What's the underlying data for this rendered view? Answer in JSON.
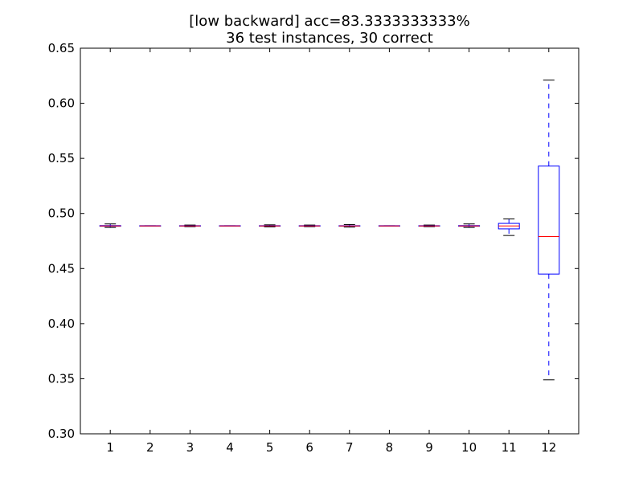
{
  "chart_data": {
    "type": "box",
    "title": "[low backward] acc=83.3333333333%",
    "subtitle": "36 test instances, 30 correct",
    "xlabel": "",
    "ylabel": "",
    "ylim": [
      0.3,
      0.65
    ],
    "yticks": [
      "0.30",
      "0.35",
      "0.40",
      "0.45",
      "0.50",
      "0.55",
      "0.60",
      "0.65"
    ],
    "categories": [
      "1",
      "2",
      "3",
      "4",
      "5",
      "6",
      "7",
      "8",
      "9",
      "10",
      "11",
      "12"
    ],
    "boxes": [
      {
        "label": "1",
        "whisker_low": 0.4873,
        "q1": 0.4884,
        "median": 0.4887,
        "q3": 0.489,
        "whisker_high": 0.4905
      },
      {
        "label": "2",
        "whisker_low": 0.4885,
        "q1": 0.4885,
        "median": 0.4887,
        "q3": 0.4889,
        "whisker_high": 0.4889
      },
      {
        "label": "3",
        "whisker_low": 0.488,
        "q1": 0.4885,
        "median": 0.4887,
        "q3": 0.4889,
        "whisker_high": 0.4895
      },
      {
        "label": "4",
        "whisker_low": 0.4885,
        "q1": 0.4885,
        "median": 0.4887,
        "q3": 0.4889,
        "whisker_high": 0.4889
      },
      {
        "label": "5",
        "whisker_low": 0.4878,
        "q1": 0.4885,
        "median": 0.4887,
        "q3": 0.4889,
        "whisker_high": 0.4897
      },
      {
        "label": "6",
        "whisker_low": 0.488,
        "q1": 0.4885,
        "median": 0.4887,
        "q3": 0.4889,
        "whisker_high": 0.4895
      },
      {
        "label": "7",
        "whisker_low": 0.4876,
        "q1": 0.4885,
        "median": 0.4887,
        "q3": 0.4889,
        "whisker_high": 0.49
      },
      {
        "label": "8",
        "whisker_low": 0.4885,
        "q1": 0.4885,
        "median": 0.4887,
        "q3": 0.4889,
        "whisker_high": 0.4889
      },
      {
        "label": "9",
        "whisker_low": 0.488,
        "q1": 0.4885,
        "median": 0.4887,
        "q3": 0.4889,
        "whisker_high": 0.4895
      },
      {
        "label": "10",
        "whisker_low": 0.4873,
        "q1": 0.4884,
        "median": 0.4887,
        "q3": 0.489,
        "whisker_high": 0.4905
      },
      {
        "label": "11",
        "whisker_low": 0.48,
        "q1": 0.486,
        "median": 0.4887,
        "q3": 0.491,
        "whisker_high": 0.495
      },
      {
        "label": "12",
        "whisker_low": 0.349,
        "q1": 0.445,
        "median": 0.479,
        "q3": 0.543,
        "whisker_high": 0.621
      }
    ],
    "colors": {
      "box": "#0000ff",
      "median": "#ff0000",
      "whisker": "#0000ff",
      "frame": "#000000"
    },
    "grid": false,
    "legend": "none"
  }
}
